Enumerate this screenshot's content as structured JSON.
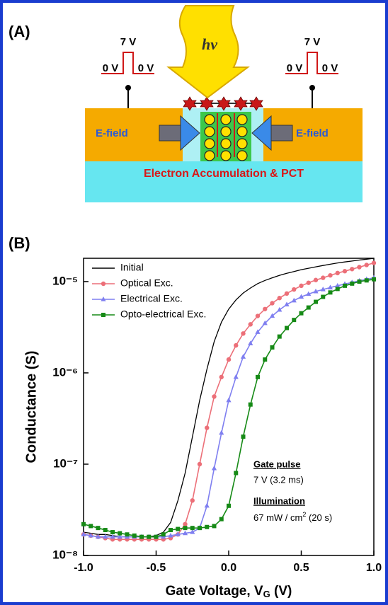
{
  "panel_a": {
    "label": "(A)",
    "light": "hν",
    "pulses": [
      {
        "high": "7 V",
        "low": [
          "0 V",
          "0 V"
        ]
      },
      {
        "high": "7 V",
        "low": [
          "0 V",
          "0 V"
        ]
      }
    ],
    "efield": [
      "E-field",
      "E-field"
    ],
    "caption": "Electron Accumulation & PCT"
  },
  "chart_data": {
    "type": "line",
    "label": "(B)",
    "log_y": true,
    "xlabel": [
      "Gate Voltage, V",
      "G",
      " (V)"
    ],
    "ylabel": "Conductance (S)",
    "x": [
      -1,
      -0.95,
      -0.9,
      -0.85,
      -0.8,
      -0.75,
      -0.7,
      -0.65,
      -0.6,
      -0.55,
      -0.5,
      -0.45,
      -0.4,
      -0.35,
      -0.3,
      -0.25,
      -0.2,
      -0.15,
      -0.1,
      -0.05,
      0,
      0.05,
      0.1,
      0.15,
      0.2,
      0.25,
      0.3,
      0.35,
      0.4,
      0.45,
      0.5,
      0.55,
      0.6,
      0.65,
      0.7,
      0.75,
      0.8,
      0.85,
      0.9,
      0.95,
      1
    ],
    "series": [
      {
        "name": "Initial",
        "color": "#000000",
        "marker": "none",
        "values": [
          1.8e-08,
          1.75e-08,
          1.7e-08,
          1.7e-08,
          1.65e-08,
          1.6e-08,
          1.6e-08,
          1.6e-08,
          1.6e-08,
          1.6e-08,
          1.65e-08,
          1.8e-08,
          2.3e-08,
          4e-08,
          8e-08,
          2e-07,
          5e-07,
          1.1e-06,
          2.2e-06,
          3.6e-06,
          5e-06,
          6.3e-06,
          7.5e-06,
          8.5e-06,
          9.5e-06,
          1.03e-05,
          1.1e-05,
          1.17e-05,
          1.23e-05,
          1.29e-05,
          1.35e-05,
          1.4e-05,
          1.45e-05,
          1.5e-05,
          1.55e-05,
          1.6e-05,
          1.64e-05,
          1.68e-05,
          1.72e-05,
          1.76e-05,
          1.8e-05
        ]
      },
      {
        "name": "Optical Exc.",
        "color": "#ec6f78",
        "marker": "circle",
        "values": [
          1.7e-08,
          1.65e-08,
          1.6e-08,
          1.55e-08,
          1.5e-08,
          1.5e-08,
          1.5e-08,
          1.5e-08,
          1.5e-08,
          1.5e-08,
          1.5e-08,
          1.5e-08,
          1.55e-08,
          1.7e-08,
          2.2e-08,
          4e-08,
          1e-07,
          2.5e-07,
          5.5e-07,
          9e-07,
          1.4e-06,
          2e-06,
          2.7e-06,
          3.4e-06,
          4.2e-06,
          5e-06,
          5.8e-06,
          6.6e-06,
          7.4e-06,
          8.2e-06,
          9e-06,
          9.7e-06,
          1.04e-05,
          1.1e-05,
          1.17e-05,
          1.24e-05,
          1.3e-05,
          1.37e-05,
          1.44e-05,
          1.52e-05,
          1.6e-05
        ]
      },
      {
        "name": "Electrical Exc.",
        "color": "#7f7ff0",
        "marker": "triangle",
        "values": [
          1.7e-08,
          1.65e-08,
          1.6e-08,
          1.6e-08,
          1.6e-08,
          1.6e-08,
          1.6e-08,
          1.6e-08,
          1.6e-08,
          1.6e-08,
          1.6e-08,
          1.6e-08,
          1.65e-08,
          1.7e-08,
          1.75e-08,
          1.8e-08,
          2e-08,
          3.5e-08,
          9e-08,
          2.2e-07,
          5e-07,
          9e-07,
          1.5e-06,
          2.1e-06,
          2.8e-06,
          3.5e-06,
          4.2e-06,
          4.9e-06,
          5.6e-06,
          6.2e-06,
          6.8e-06,
          7.3e-06,
          7.8e-06,
          8.2e-06,
          8.6e-06,
          9e-06,
          9.4e-06,
          9.8e-06,
          1.02e-05,
          1.06e-05,
          1.1e-05
        ]
      },
      {
        "name": "Opto-electrical Exc.",
        "color": "#168a16",
        "marker": "square",
        "values": [
          2.2e-08,
          2.1e-08,
          2e-08,
          1.9e-08,
          1.8e-08,
          1.75e-08,
          1.7e-08,
          1.65e-08,
          1.6e-08,
          1.6e-08,
          1.6e-08,
          1.7e-08,
          1.9e-08,
          1.95e-08,
          2e-08,
          2e-08,
          2e-08,
          2.05e-08,
          2.1e-08,
          2.5e-08,
          3.5e-08,
          8e-08,
          2e-07,
          4.5e-07,
          9e-07,
          1.4e-06,
          1.9e-06,
          2.5e-06,
          3.1e-06,
          3.8e-06,
          4.5e-06,
          5.2e-06,
          6e-06,
          6.8e-06,
          7.6e-06,
          8.3e-06,
          9e-06,
          9.5e-06,
          1e-05,
          1.03e-05,
          1.06e-05
        ]
      }
    ],
    "xlim": [
      -1,
      1
    ],
    "xticks": [
      {
        "value": -1,
        "label": "-1.0"
      },
      -0.5,
      {
        "value": 0,
        "label": "0.0"
      },
      0.5,
      {
        "value": 1,
        "label": "1.0"
      }
    ],
    "ylim": [
      1e-08,
      1.8e-05
    ],
    "yticks": [
      {
        "value": 1e-08,
        "label": "10⁻⁸"
      },
      {
        "value": 1e-07,
        "label": "10⁻⁷"
      },
      {
        "value": 1e-06,
        "label": "10⁻⁶"
      },
      {
        "value": 1e-05,
        "label": "10⁻⁵"
      }
    ],
    "legend": "top-left",
    "annotations": {
      "pulse_title": "Gate pulse",
      "pulse_text": "7 V (3.2 ms)",
      "light_title": "Illumination",
      "light_text": [
        "67 mW / cm",
        "2",
        " (20 s)"
      ]
    }
  }
}
